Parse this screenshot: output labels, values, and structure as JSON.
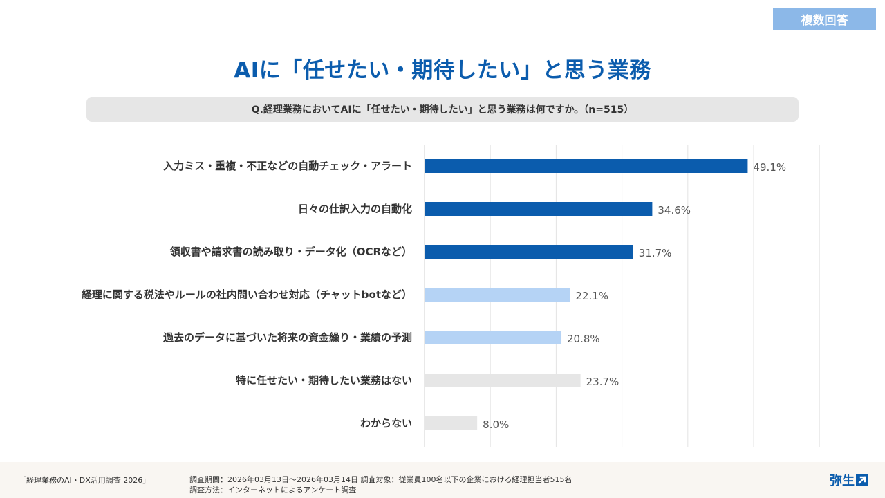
{
  "badge": "複数回答",
  "title": "AIに「任せたい・期待したい」と思う業務",
  "question": "Q.経理業務においてAIに「任せたい・期待したい」と思う業務は何ですか。（n=515）",
  "footer": {
    "survey_name": "「経理業務のAI・DX活用調査 2026」",
    "info_line1": "調査期間：2026年03月13日～2026年03月14日 調査対象：従業員100名以下の企業における経理担当者515名",
    "info_line2": "調査方法：インターネットによるアンケート調査",
    "logo_text": "弥生"
  },
  "chart_data": {
    "type": "bar",
    "orientation": "horizontal",
    "title": "AIに「任せたい・期待したい」と思う業務",
    "categories": [
      "入力ミス・重複・不正などの自動チェック・アラート",
      "日々の仕訳入力の自動化",
      "領収書や請求書の読み取り・データ化（OCRなど）",
      "経理に関する税法やルールの社内問い合わせ対応（チャットbotなど）",
      "過去のデータに基づいた将来の資金繰り・業績の予測",
      "特に任せたい・期待したい業務はない",
      "わからない"
    ],
    "values": [
      49.1,
      34.6,
      31.7,
      22.1,
      20.8,
      23.7,
      8.0
    ],
    "value_labels": [
      "49.1%",
      "34.6%",
      "31.7%",
      "22.1%",
      "20.8%",
      "23.7%",
      "8.0%"
    ],
    "bar_colors": [
      "#0b5cad",
      "#0b5cad",
      "#0b5cad",
      "#b5d3f5",
      "#b5d3f5",
      "#e6e6e6",
      "#e6e6e6"
    ],
    "xlim": [
      0,
      60
    ],
    "grid": true,
    "xlabel": "",
    "ylabel": ""
  }
}
